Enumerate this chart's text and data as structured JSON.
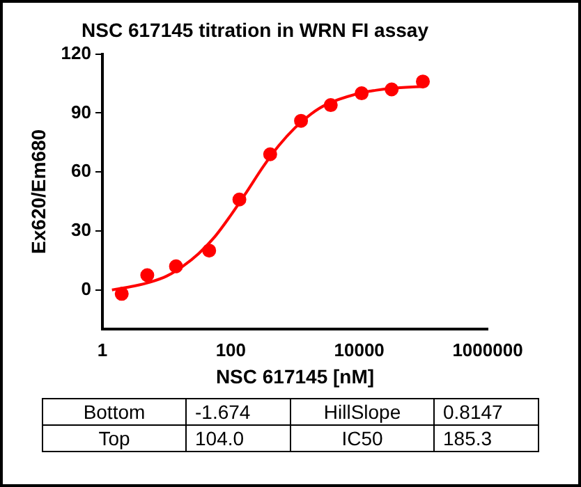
{
  "chart_data": {
    "type": "scatter",
    "title": "NSC 617145 titration in WRN FI assay",
    "xlabel": "NSC 617145 [nM]",
    "ylabel": "Ex620/Em680",
    "log": "x",
    "xlim": [
      1,
      1000000
    ],
    "xticks": [
      1,
      100,
      10000,
      1000000
    ],
    "ylim": [
      -20,
      120
    ],
    "yticks": [
      0,
      30,
      60,
      90,
      120
    ],
    "grid": false,
    "legend": false,
    "series": [
      {
        "type": "scatter",
        "marker": "circle",
        "color": "#ff0000",
        "x": [
          2,
          5,
          14,
          46,
          136,
          410,
          1240,
          3600,
          10900,
          32000,
          98000
        ],
        "values": [
          -2,
          7.5,
          12,
          20,
          46,
          69,
          86,
          94,
          100,
          102,
          106
        ]
      },
      {
        "type": "line",
        "marker": "none",
        "color": "#ff0000",
        "x": [
          1.41,
          3.16,
          5.62,
          10,
          17.8,
          31.6,
          56.2,
          100,
          178,
          316,
          562,
          1000,
          1778,
          3162,
          10000,
          17783,
          31623,
          100000
        ],
        "values": [
          0,
          2,
          4,
          7,
          12,
          18.5,
          27,
          38,
          50,
          62.5,
          73.5,
          82.5,
          89.5,
          94.5,
          100,
          101.5,
          102.5,
          103.5
        ]
      }
    ],
    "annotations": [
      "Bottom",
      "-1.674",
      "HillSlope",
      "0.8147",
      "Top",
      "104.0",
      "IC50",
      "185.3"
    ]
  }
}
